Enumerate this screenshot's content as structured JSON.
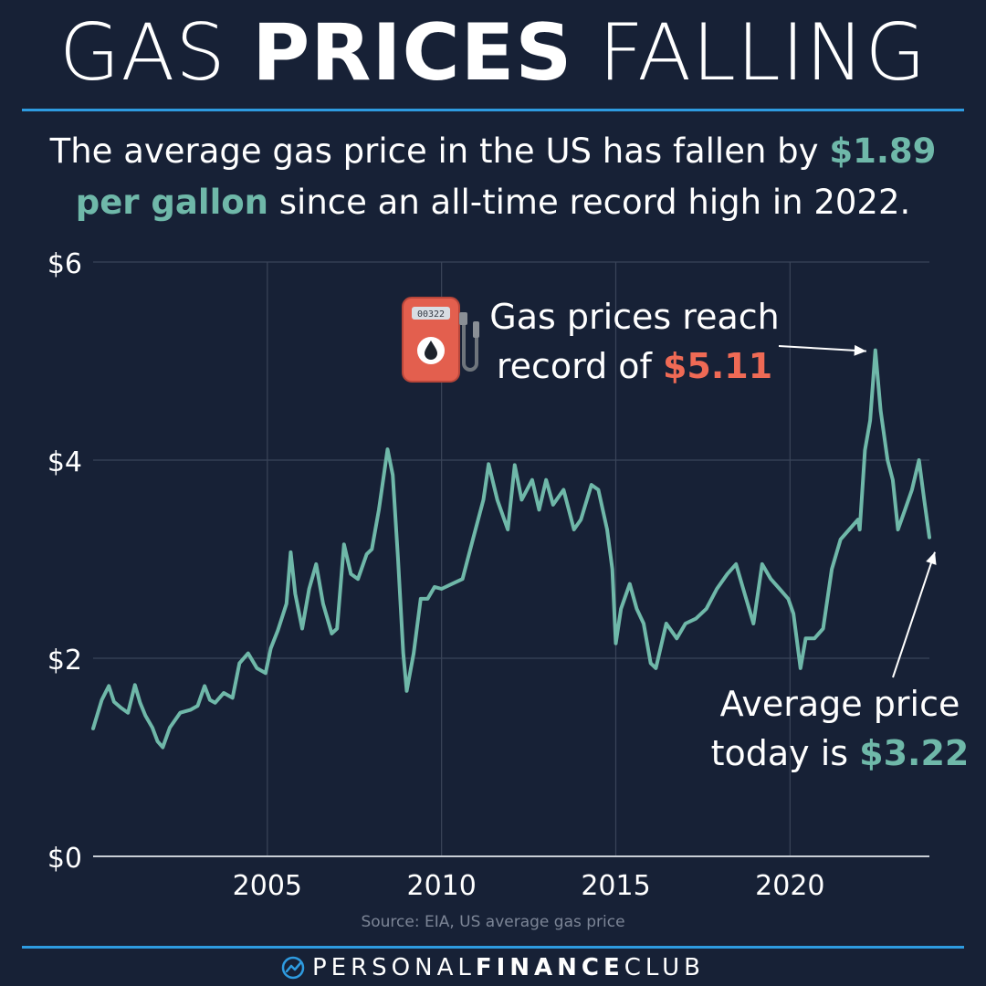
{
  "title": {
    "part1": "GAS ",
    "part2": "PRICES",
    "part3": " FALLING"
  },
  "subtitle": {
    "before": "The average gas price in the US has fallen by ",
    "highlight": "$1.89 per gallon",
    "after": " since an all-time record high in 2022."
  },
  "annotations": {
    "record_line1": "Gas prices reach",
    "record_prefix": "record of ",
    "record_value": "$5.11",
    "today_line1": "Average price",
    "today_prefix": "today is ",
    "today_value": "$3.22",
    "pump_counter": "00322"
  },
  "source": "Source: EIA, US average gas price",
  "footer": {
    "part1": "PERSONAL",
    "part2": "FINANCE",
    "part3": "CLUB"
  },
  "colors": {
    "background": "#172136",
    "line": "#6fb8a9",
    "accent_red": "#ef6a55",
    "rule": "#2e9be0",
    "grid": "#3a4559"
  },
  "chart_data": {
    "type": "line",
    "title": "",
    "xlabel": "",
    "ylabel": "",
    "xlim": [
      2000,
      2024
    ],
    "ylim": [
      0,
      6
    ],
    "x_ticks": [
      2005,
      2010,
      2015,
      2020
    ],
    "x_tick_labels": [
      "2005",
      "2010",
      "2015",
      "2020"
    ],
    "y_ticks": [
      0,
      2,
      4,
      6
    ],
    "y_tick_labels": [
      "$0",
      "$2",
      "$4",
      "$6"
    ],
    "grid": true,
    "series": [
      {
        "name": "",
        "x": [
          2000.0,
          2000.25,
          2000.45,
          2000.6,
          2000.8,
          2001.0,
          2001.2,
          2001.35,
          2001.5,
          2001.7,
          2001.85,
          2002.0,
          2002.2,
          2002.5,
          2002.8,
          2003.0,
          2003.2,
          2003.35,
          2003.5,
          2003.75,
          2004.0,
          2004.2,
          2004.45,
          2004.7,
          2004.95,
          2005.1,
          2005.3,
          2005.55,
          2005.67,
          2005.8,
          2006.0,
          2006.2,
          2006.4,
          2006.6,
          2006.85,
          2007.0,
          2007.2,
          2007.4,
          2007.6,
          2007.85,
          2008.0,
          2008.2,
          2008.45,
          2008.6,
          2008.75,
          2008.9,
          2009.0,
          2009.2,
          2009.4,
          2009.6,
          2009.8,
          2010.0,
          2010.3,
          2010.6,
          2010.9,
          2011.2,
          2011.35,
          2011.6,
          2011.9,
          2012.1,
          2012.3,
          2012.6,
          2012.8,
          2013.0,
          2013.2,
          2013.5,
          2013.8,
          2014.0,
          2014.3,
          2014.5,
          2014.75,
          2014.9,
          2015.0,
          2015.15,
          2015.4,
          2015.6,
          2015.8,
          2016.0,
          2016.15,
          2016.45,
          2016.75,
          2017.0,
          2017.3,
          2017.6,
          2017.9,
          2018.2,
          2018.45,
          2018.7,
          2018.95,
          2019.2,
          2019.45,
          2019.7,
          2019.95,
          2020.1,
          2020.3,
          2020.45,
          2020.7,
          2020.95,
          2021.2,
          2021.45,
          2021.7,
          2021.95,
          2022.0,
          2022.15,
          2022.3,
          2022.45,
          2022.6,
          2022.8,
          2022.95,
          2023.1,
          2023.3,
          2023.5,
          2023.7,
          2023.85,
          2024.0
        ],
        "y": [
          1.29,
          1.58,
          1.72,
          1.56,
          1.5,
          1.45,
          1.73,
          1.55,
          1.42,
          1.3,
          1.16,
          1.1,
          1.3,
          1.45,
          1.48,
          1.52,
          1.72,
          1.58,
          1.55,
          1.65,
          1.6,
          1.95,
          2.05,
          1.9,
          1.85,
          2.1,
          2.28,
          2.55,
          3.07,
          2.65,
          2.3,
          2.7,
          2.95,
          2.55,
          2.25,
          2.3,
          3.15,
          2.85,
          2.8,
          3.05,
          3.1,
          3.5,
          4.11,
          3.85,
          3.0,
          2.05,
          1.67,
          2.05,
          2.6,
          2.6,
          2.72,
          2.7,
          2.75,
          2.8,
          3.2,
          3.6,
          3.96,
          3.6,
          3.3,
          3.95,
          3.6,
          3.8,
          3.5,
          3.8,
          3.55,
          3.7,
          3.3,
          3.4,
          3.75,
          3.7,
          3.3,
          2.9,
          2.15,
          2.5,
          2.75,
          2.5,
          2.35,
          1.95,
          1.9,
          2.35,
          2.2,
          2.35,
          2.4,
          2.5,
          2.7,
          2.85,
          2.95,
          2.65,
          2.35,
          2.95,
          2.8,
          2.7,
          2.6,
          2.45,
          1.9,
          2.2,
          2.2,
          2.3,
          2.9,
          3.2,
          3.3,
          3.4,
          3.3,
          4.1,
          4.4,
          5.11,
          4.5,
          4.0,
          3.8,
          3.3,
          3.5,
          3.7,
          4.0,
          3.6,
          3.22
        ]
      }
    ]
  }
}
